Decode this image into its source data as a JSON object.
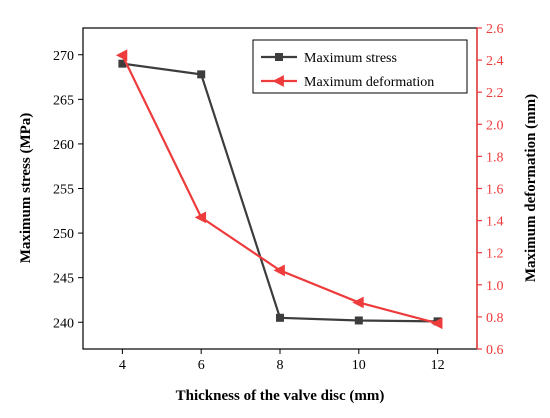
{
  "chart_data": {
    "type": "line",
    "xlabel": "Thickness of the valve disc (mm)",
    "ylabel_left": "Maximum stress (MPa)",
    "ylabel_right": "Maximum deformation (mm)",
    "x_ticks": [
      "4",
      "6",
      "8",
      "10",
      "12"
    ],
    "y_left_ticks": [
      "240",
      "245",
      "250",
      "255",
      "260",
      "265",
      "270"
    ],
    "y_right_ticks": [
      "0.6",
      "0.8",
      "1.0",
      "1.2",
      "1.4",
      "1.6",
      "1.8",
      "2.0",
      "2.2",
      "2.4",
      "2.6"
    ],
    "xlim": [
      3,
      13
    ],
    "ylim_left": [
      237,
      273
    ],
    "ylim_right": [
      0.6,
      2.6
    ],
    "grid": false,
    "legend_position": "top-right",
    "colors": {
      "stress": "#3d3d3d",
      "deformation": "#ee3b3b",
      "axis": "#000000"
    },
    "series": [
      {
        "name": "Maximum stress",
        "axis": "left",
        "marker": "square",
        "x": [
          4,
          6,
          8,
          10,
          12
        ],
        "values": [
          269.0,
          267.8,
          240.5,
          240.2,
          240.1
        ]
      },
      {
        "name": "Maximum deformation",
        "axis": "right",
        "marker": "triangle-left",
        "x": [
          4,
          6,
          8,
          10,
          12
        ],
        "values": [
          2.43,
          1.42,
          1.09,
          0.89,
          0.76
        ]
      }
    ]
  }
}
